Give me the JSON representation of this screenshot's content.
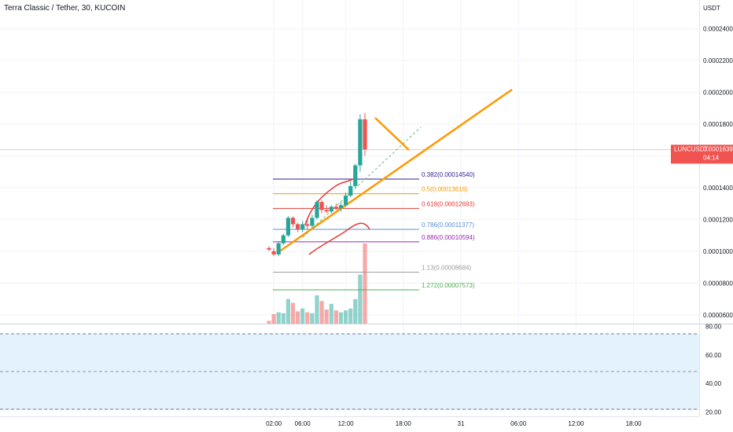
{
  "header": {
    "title": "Terra Classic / Tether, 30, KUCOIN"
  },
  "chart_data": {
    "type": "candlestick",
    "price_axis": {
      "unit_label": "USDT",
      "ticks": [
        6e-05,
        8e-05,
        0.0001,
        0.00012,
        0.00014,
        0.00016,
        0.00018,
        0.0002,
        0.00022,
        0.00024
      ],
      "tick_labels": [
        "0.00006000",
        "0.00008000",
        "0.00010000",
        "0.00012000",
        "0.00014000",
        "0.00016000",
        "0.00018000",
        "0.00020000",
        "0.00022000",
        "0.00024000"
      ],
      "range": [
        5.45e-05,
        0.000258
      ]
    },
    "time_axis": {
      "tick_labels": [
        "02:00",
        "06:00",
        "12:00",
        "18:00",
        "31",
        "06:00",
        "12:00",
        "18:00"
      ],
      "tick_bars": [
        1,
        7,
        16,
        28,
        40,
        52,
        64,
        76
      ]
    },
    "last_price": {
      "symbol": "LUNCUSDT",
      "value": 0.00016399,
      "value_label": "0.00016399",
      "countdown": "04:14"
    },
    "candles": [
      {
        "o": 0.000102,
        "h": 0.000103,
        "l": 0.0001,
        "c": 0.000101
      },
      {
        "o": 0.0001,
        "h": 0.000102,
        "l": 9.7e-05,
        "c": 9.8e-05
      },
      {
        "o": 9.8e-05,
        "h": 0.000106,
        "l": 9.7e-05,
        "c": 0.000105
      },
      {
        "o": 0.000105,
        "h": 0.000111,
        "l": 0.000104,
        "c": 0.00011
      },
      {
        "o": 0.00011,
        "h": 0.000122,
        "l": 0.000109,
        "c": 0.000121
      },
      {
        "o": 0.000121,
        "h": 0.000122,
        "l": 0.000115,
        "c": 0.000117
      },
      {
        "o": 0.000117,
        "h": 0.000118,
        "l": 0.000112,
        "c": 0.000114
      },
      {
        "o": 0.000114,
        "h": 0.000119,
        "l": 0.000112,
        "c": 0.000117
      },
      {
        "o": 0.000117,
        "h": 0.00012,
        "l": 0.000114,
        "c": 0.000116
      },
      {
        "o": 0.000116,
        "h": 0.000123,
        "l": 0.000115,
        "c": 0.000121
      },
      {
        "o": 0.000121,
        "h": 0.000132,
        "l": 0.00012,
        "c": 0.000131
      },
      {
        "o": 0.000131,
        "h": 0.000132,
        "l": 0.000124,
        "c": 0.000126
      },
      {
        "o": 0.000126,
        "h": 0.000129,
        "l": 0.000124,
        "c": 0.000125
      },
      {
        "o": 0.000125,
        "h": 0.000129,
        "l": 0.000124,
        "c": 0.000128
      },
      {
        "o": 0.000128,
        "h": 0.00013,
        "l": 0.000126,
        "c": 0.000127
      },
      {
        "o": 0.000127,
        "h": 0.000131,
        "l": 0.000125,
        "c": 0.000129
      },
      {
        "o": 0.000129,
        "h": 0.000137,
        "l": 0.000128,
        "c": 0.000135
      },
      {
        "o": 0.000135,
        "h": 0.000144,
        "l": 0.000134,
        "c": 0.000141
      },
      {
        "o": 0.000141,
        "h": 0.000155,
        "l": 0.00014,
        "c": 0.000154
      },
      {
        "o": 0.000154,
        "h": 0.000186,
        "l": 0.00015,
        "c": 0.000183
      },
      {
        "o": 0.000183,
        "h": 0.000187,
        "l": 0.00016,
        "c": 0.000164
      }
    ],
    "volume": [
      3,
      10,
      12,
      11,
      26,
      22,
      13,
      16,
      12,
      11,
      30,
      24,
      15,
      21,
      14,
      12,
      14,
      16,
      26,
      52,
      85
    ],
    "fib_levels": [
      {
        "label": "0.382(0.00014540)",
        "price": 0.0001454,
        "color": "#311b92"
      },
      {
        "label": "0.5(0.00013616)",
        "price": 0.00013616,
        "color": "#ff9800"
      },
      {
        "label": "0.618(0.00012693)",
        "price": 0.00012693,
        "color": "#e53935"
      },
      {
        "label": "0.786(0.00011377)",
        "price": 0.00011377,
        "color": "#5b8fd6"
      },
      {
        "label": "0.886(0.00010594)",
        "price": 0.00010594,
        "color": "#9c27b0"
      },
      {
        "label": "1.13(0.00008684)",
        "price": 8.684e-05,
        "color": "#9e9e9e"
      },
      {
        "label": "1.272(0.00007573)",
        "price": 7.573e-05,
        "color": "#4caf50"
      }
    ],
    "oscillator": {
      "ticks": [
        20,
        40,
        60,
        80
      ],
      "tick_labels": [
        "20.00",
        "40.00",
        "60.00",
        "80.00"
      ],
      "range": [
        17,
        82
      ],
      "bands": [
        20,
        80
      ]
    },
    "colors": {
      "up": "#26a69a",
      "down": "#ef5350",
      "trendline": "#ff9800",
      "oscillator_fill": "#e3f2fd",
      "last_price": "#f05350"
    }
  }
}
